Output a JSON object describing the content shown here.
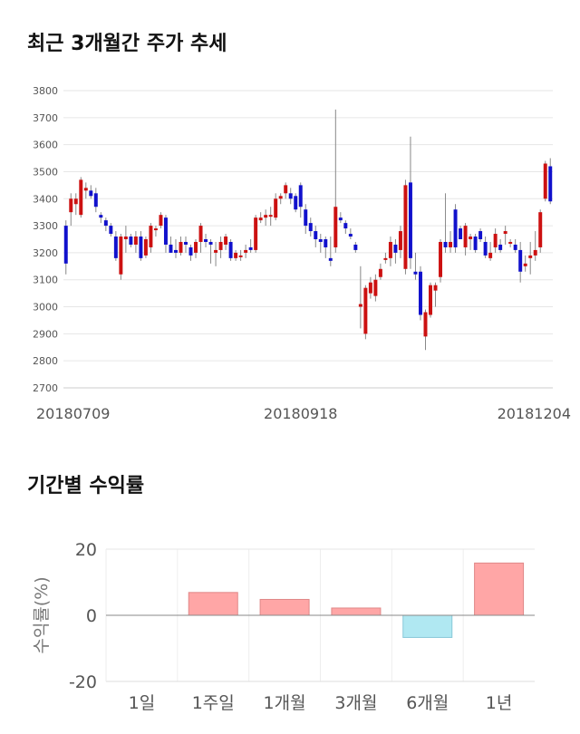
{
  "sections": {
    "candles_title": "최근 3개월간 주가 추세",
    "returns_title": "기간별 수익률"
  },
  "chart_data": [
    {
      "type": "candlestick",
      "title": "최근 3개월간 주가 추세",
      "ylim": [
        2700,
        3800
      ],
      "yticks": [
        2700,
        2800,
        2900,
        3000,
        3100,
        3200,
        3300,
        3400,
        3500,
        3600,
        3700,
        3800
      ],
      "xtick_labels": [
        {
          "index": 0,
          "label": "20180709"
        },
        {
          "index": 47,
          "label": "20180918"
        },
        {
          "index": 97,
          "label": "20181204"
        }
      ],
      "grid": true,
      "up_color": "#cc1111",
      "down_color": "#1111cc",
      "ohlc": [
        [
          3300,
          3320,
          3120,
          3160
        ],
        [
          3350,
          3420,
          3300,
          3400
        ],
        [
          3380,
          3420,
          3340,
          3400
        ],
        [
          3340,
          3480,
          3330,
          3470
        ],
        [
          3430,
          3460,
          3400,
          3440
        ],
        [
          3430,
          3450,
          3400,
          3410
        ],
        [
          3420,
          3440,
          3350,
          3370
        ],
        [
          3340,
          3350,
          3310,
          3330
        ],
        [
          3320,
          3330,
          3280,
          3300
        ],
        [
          3300,
          3310,
          3260,
          3270
        ],
        [
          3260,
          3280,
          3170,
          3180
        ],
        [
          3120,
          3270,
          3100,
          3260
        ],
        [
          3250,
          3300,
          3200,
          3260
        ],
        [
          3260,
          3270,
          3220,
          3230
        ],
        [
          3230,
          3280,
          3200,
          3260
        ],
        [
          3260,
          3280,
          3170,
          3180
        ],
        [
          3190,
          3260,
          3180,
          3250
        ],
        [
          3220,
          3310,
          3200,
          3300
        ],
        [
          3290,
          3300,
          3260,
          3290
        ],
        [
          3300,
          3350,
          3290,
          3340
        ],
        [
          3330,
          3340,
          3200,
          3230
        ],
        [
          3230,
          3260,
          3200,
          3200
        ],
        [
          3210,
          3250,
          3180,
          3200
        ],
        [
          3200,
          3260,
          3190,
          3240
        ],
        [
          3240,
          3260,
          3200,
          3230
        ],
        [
          3220,
          3230,
          3170,
          3190
        ],
        [
          3200,
          3250,
          3180,
          3240
        ],
        [
          3240,
          3310,
          3200,
          3300
        ],
        [
          3250,
          3270,
          3220,
          3240
        ],
        [
          3240,
          3250,
          3160,
          3230
        ],
        [
          3200,
          3240,
          3150,
          3210
        ],
        [
          3210,
          3260,
          3180,
          3240
        ],
        [
          3230,
          3270,
          3210,
          3260
        ],
        [
          3240,
          3250,
          3170,
          3180
        ],
        [
          3180,
          3210,
          3170,
          3200
        ],
        [
          3190,
          3210,
          3170,
          3190
        ],
        [
          3200,
          3230,
          3180,
          3210
        ],
        [
          3220,
          3250,
          3200,
          3210
        ],
        [
          3210,
          3340,
          3200,
          3330
        ],
        [
          3320,
          3350,
          3310,
          3330
        ],
        [
          3330,
          3360,
          3300,
          3340
        ],
        [
          3340,
          3370,
          3300,
          3340
        ],
        [
          3330,
          3420,
          3320,
          3400
        ],
        [
          3400,
          3420,
          3380,
          3410
        ],
        [
          3420,
          3460,
          3400,
          3450
        ],
        [
          3420,
          3440,
          3380,
          3400
        ],
        [
          3410,
          3420,
          3350,
          3360
        ],
        [
          3450,
          3460,
          3330,
          3370
        ],
        [
          3360,
          3380,
          3270,
          3300
        ],
        [
          3310,
          3330,
          3260,
          3280
        ],
        [
          3280,
          3300,
          3220,
          3250
        ],
        [
          3250,
          3270,
          3200,
          3240
        ],
        [
          3250,
          3260,
          3180,
          3220
        ],
        [
          3180,
          3260,
          3150,
          3170
        ],
        [
          3220,
          3730,
          3200,
          3370
        ],
        [
          3330,
          3350,
          3310,
          3320
        ],
        [
          3310,
          3320,
          3270,
          3290
        ],
        [
          3270,
          3290,
          3250,
          3260
        ],
        [
          3230,
          3240,
          3200,
          3210
        ],
        [
          3000,
          3150,
          2920,
          3010
        ],
        [
          2900,
          3080,
          2880,
          3070
        ],
        [
          3050,
          3110,
          3030,
          3090
        ],
        [
          3040,
          3120,
          3020,
          3100
        ],
        [
          3110,
          3160,
          3100,
          3140
        ],
        [
          3180,
          3200,
          3160,
          3180
        ],
        [
          3180,
          3260,
          3150,
          3240
        ],
        [
          3230,
          3250,
          3160,
          3200
        ],
        [
          3210,
          3300,
          3180,
          3280
        ],
        [
          3140,
          3470,
          3120,
          3450
        ],
        [
          3460,
          3630,
          3140,
          3180
        ],
        [
          3130,
          3200,
          3100,
          3120
        ],
        [
          3130,
          3150,
          2950,
          2970
        ],
        [
          2890,
          2990,
          2840,
          2980
        ],
        [
          2970,
          3090,
          2960,
          3080
        ],
        [
          3060,
          3090,
          3000,
          3080
        ],
        [
          3110,
          3250,
          3090,
          3240
        ],
        [
          3240,
          3420,
          3200,
          3220
        ],
        [
          3220,
          3280,
          3200,
          3240
        ],
        [
          3360,
          3380,
          3200,
          3220
        ],
        [
          3290,
          3300,
          3250,
          3250
        ],
        [
          3220,
          3310,
          3190,
          3300
        ],
        [
          3250,
          3270,
          3210,
          3260
        ],
        [
          3260,
          3270,
          3200,
          3210
        ],
        [
          3280,
          3290,
          3240,
          3250
        ],
        [
          3240,
          3260,
          3180,
          3190
        ],
        [
          3180,
          3240,
          3170,
          3200
        ],
        [
          3220,
          3290,
          3200,
          3270
        ],
        [
          3230,
          3250,
          3200,
          3210
        ],
        [
          3270,
          3300,
          3230,
          3280
        ],
        [
          3240,
          3250,
          3220,
          3240
        ],
        [
          3230,
          3250,
          3200,
          3210
        ],
        [
          3210,
          3240,
          3090,
          3130
        ],
        [
          3150,
          3190,
          3130,
          3160
        ],
        [
          3180,
          3240,
          3120,
          3190
        ],
        [
          3190,
          3280,
          3170,
          3210
        ],
        [
          3220,
          3360,
          3200,
          3350
        ],
        [
          3400,
          3540,
          3390,
          3530
        ],
        [
          3520,
          3550,
          3380,
          3390
        ]
      ]
    },
    {
      "type": "bar",
      "title": "기간별 수익률",
      "ylabel": "수익률(%)",
      "ylim": [
        -20,
        20
      ],
      "yticks": [
        20,
        0,
        -20
      ],
      "categories": [
        "1일",
        "1주일",
        "1개월",
        "3개월",
        "6개월",
        "1년"
      ],
      "values": [
        0,
        6.9,
        4.8,
        2.2,
        -6.7,
        15.8
      ],
      "positive_color": "#ffa6a6",
      "negative_color": "#b0e8f2",
      "grid": true
    }
  ]
}
